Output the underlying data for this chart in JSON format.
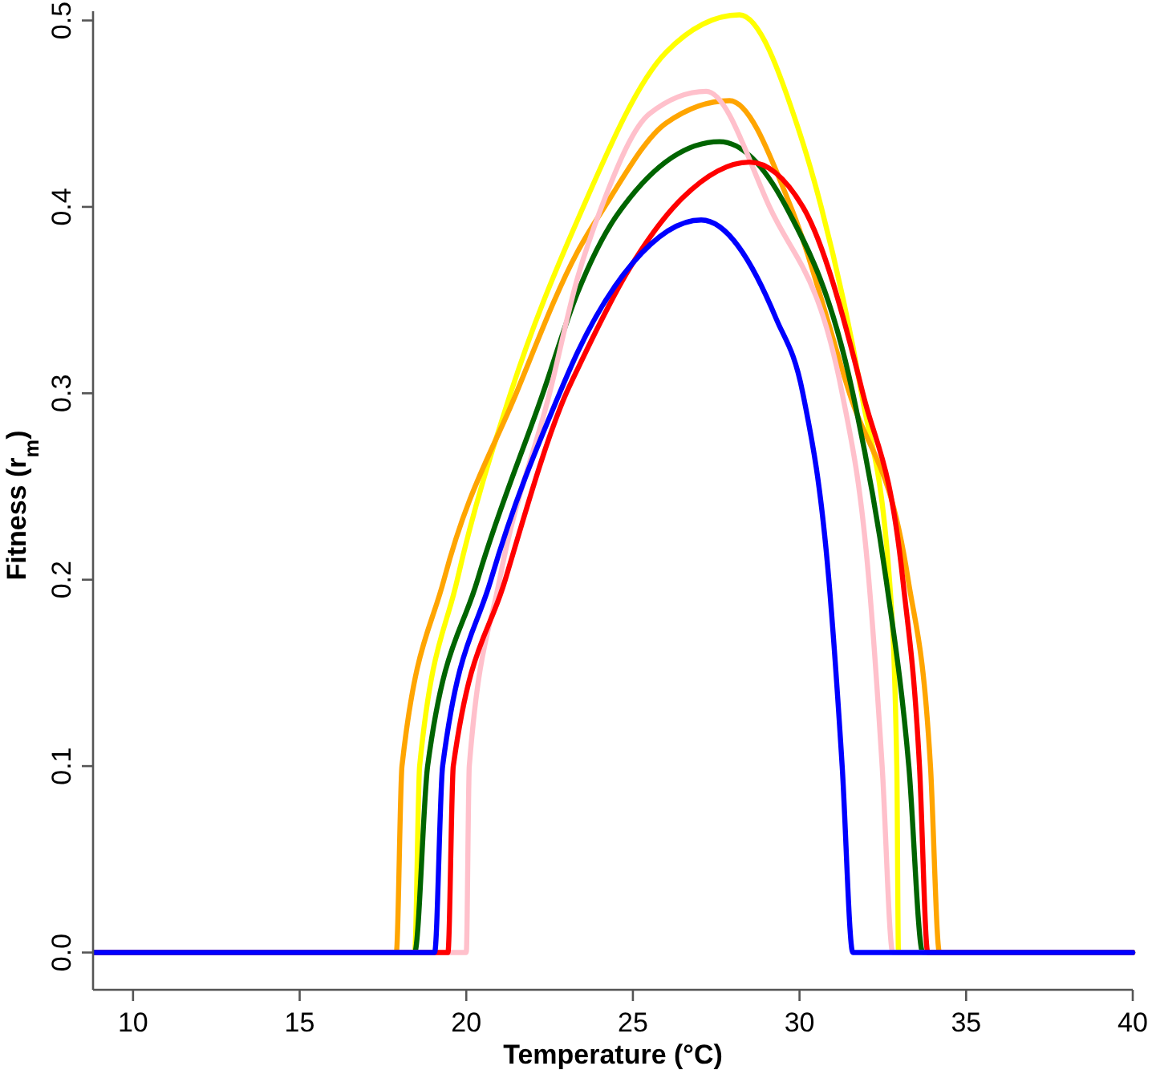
{
  "chart_data": {
    "type": "line",
    "xlabel": "Temperature (°C)",
    "ylabel": "Fitness (r$_{m}$)",
    "xlim": [
      8.8,
      40
    ],
    "ylim": [
      -0.02,
      0.505
    ],
    "xticks": [
      10,
      15,
      20,
      25,
      30,
      35,
      40
    ],
    "yticks": [
      {
        "value": 0,
        "label": "0.0"
      },
      {
        "value": 0.1,
        "label": "0.1"
      },
      {
        "value": 0.2,
        "label": "0.2"
      },
      {
        "value": 0.3,
        "label": "0.3"
      },
      {
        "value": 0.4,
        "label": "0.4"
      },
      {
        "value": 0.5,
        "label": "0.5"
      }
    ],
    "grid": false,
    "marker": "none",
    "line_style": "solid",
    "series": [
      {
        "color": "#ffff00",
        "x": [
          8.8,
          18.45,
          18.6,
          19.73,
          21.33,
          23.34,
          26,
          28.2,
          30,
          30.65,
          31.86,
          32.7,
          32.92,
          32.97,
          40
        ],
        "values": [
          0,
          0,
          0.1,
          0.2,
          0.3,
          0.393,
          0.483,
          0.503,
          0.44,
          0.4,
          0.3,
          0.2,
          0.1,
          0,
          0
        ]
      },
      {
        "color": "#ffa500",
        "x": [
          8.8,
          17.9,
          18.07,
          19.33,
          21.5,
          23.34,
          24.15,
          26,
          27.9,
          29.74,
          31.5,
          33.26,
          33.93,
          34.2,
          40
        ],
        "values": [
          0,
          0,
          0.1,
          0.2,
          0.3,
          0.376,
          0.4,
          0.445,
          0.457,
          0.4,
          0.3,
          0.2,
          0.1,
          0,
          0
        ]
      },
      {
        "color": "#006400",
        "x": [
          8.8,
          18.45,
          18.84,
          20.34,
          22.3,
          23.34,
          24.5,
          27.6,
          29.6,
          31.6,
          32.6,
          33.28,
          33.7,
          40
        ],
        "values": [
          0,
          0,
          0.1,
          0.2,
          0.3,
          0.354,
          0.395,
          0.435,
          0.4,
          0.3,
          0.2,
          0.1,
          0,
          0
        ]
      },
      {
        "color": "#ffc0cb",
        "x": [
          8.8,
          20.0,
          20.09,
          21.0,
          22.5,
          23.34,
          24.06,
          25.5,
          27.2,
          29.1,
          31.28,
          32.08,
          32.48,
          32.8,
          40
        ],
        "values": [
          0,
          0,
          0.1,
          0.2,
          0.3,
          0.362,
          0.4,
          0.45,
          0.462,
          0.4,
          0.3,
          0.2,
          0.1,
          0,
          0
        ]
      },
      {
        "color": "#ff0000",
        "x": [
          8.8,
          19.45,
          19.61,
          21.17,
          23.0,
          23.34,
          24.9,
          26.5,
          28.5,
          30.1,
          31.9,
          33.1,
          33.6,
          33.85,
          40
        ],
        "values": [
          0,
          0,
          0.1,
          0.2,
          0.3,
          0.313,
          0.367,
          0.405,
          0.424,
          0.4,
          0.3,
          0.2,
          0.1,
          0,
          0
        ]
      },
      {
        "color": "#0000ff",
        "x": [
          8.8,
          19.05,
          19.29,
          20.74,
          22.8,
          23.34,
          25,
          27.05,
          29.3,
          30.1,
          30.88,
          31.28,
          31.6,
          40
        ],
        "values": [
          0,
          0,
          0.1,
          0.2,
          0.3,
          0.322,
          0.37,
          0.393,
          0.34,
          0.3,
          0.2,
          0.1,
          0,
          0
        ]
      }
    ]
  }
}
